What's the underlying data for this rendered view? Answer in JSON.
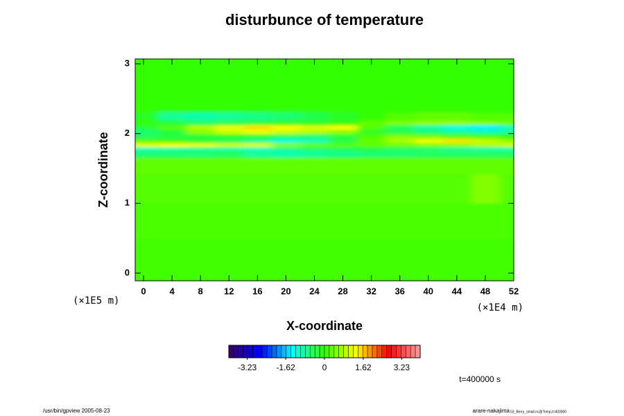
{
  "chart_data": {
    "type": "heatmap",
    "title": "disturbunce of temperature",
    "x_label": "X-coordinate",
    "y_label": "Z-coordinate",
    "x_unit": "(×1E4 m)",
    "y_unit": "(×1E5 m)",
    "time_label": "t=400000 s",
    "footer_left": "/usr/bin/gpview 2005-08-23",
    "footer_right": "arare-nakajima",
    "footer_right_small": "03_Berry_small.nc@Temp,t=400000",
    "xlim": [
      -1.17,
      52
    ],
    "ylim": [
      -0.11,
      3.07
    ],
    "xticks": [
      0,
      4,
      8,
      12,
      16,
      20,
      24,
      28,
      32,
      36,
      40,
      44,
      48,
      52
    ],
    "yticks": [
      0,
      1,
      2,
      3
    ],
    "x": [
      0,
      4,
      8,
      12,
      16,
      20,
      24,
      28,
      32,
      36,
      40,
      44,
      48,
      52
    ],
    "y": [
      0.25,
      0.75,
      1.25,
      1.6,
      1.72,
      1.78,
      1.84,
      1.9,
      1.96,
      2.03,
      2.09,
      2.16,
      2.22,
      2.4,
      2.8
    ],
    "values": [
      [
        0.1,
        0.1,
        0.1,
        0.1,
        0.1,
        0.1,
        0.1,
        0.1,
        0.1,
        0.1,
        0.1,
        0.1,
        0.1,
        0.1
      ],
      [
        0.15,
        0.15,
        0.15,
        0.15,
        0.15,
        0.15,
        0.15,
        0.15,
        0.15,
        0.15,
        0.15,
        0.15,
        0.15,
        0.15
      ],
      [
        0.2,
        0.2,
        0.2,
        0.2,
        0.2,
        0.2,
        0.2,
        0.2,
        0.2,
        0.2,
        0.2,
        0.2,
        0.5,
        0.2
      ],
      [
        0.3,
        0.3,
        0.3,
        0.3,
        0.3,
        0.3,
        0.3,
        0.3,
        0.3,
        0.3,
        0.3,
        0.3,
        0.3,
        0.3
      ],
      [
        -0.6,
        -0.6,
        -0.6,
        -0.5,
        -0.8,
        -0.9,
        -0.8,
        -0.7,
        -0.6,
        -0.6,
        -0.5,
        -0.5,
        -0.5,
        -0.5
      ],
      [
        -1.0,
        -0.9,
        -0.8,
        -0.9,
        -1.0,
        -0.8,
        -0.6,
        -0.5,
        -0.4,
        -0.5,
        -0.6,
        -0.8,
        -0.9,
        -0.9
      ],
      [
        1.2,
        1.3,
        1.2,
        1.0,
        1.1,
        0.5,
        0.3,
        0.2,
        0.3,
        0.4,
        0.5,
        0.6,
        0.8,
        1.0
      ],
      [
        0.2,
        0.1,
        -0.3,
        -0.5,
        -0.8,
        -1.2,
        -1.0,
        -0.4,
        0.3,
        0.8,
        1.3,
        1.5,
        1.0,
        0.6
      ],
      [
        -0.5,
        -0.4,
        -0.3,
        -0.2,
        -0.3,
        -0.5,
        -0.6,
        -0.3,
        0.2,
        0.5,
        0.4,
        0.2,
        0.1,
        0.0
      ],
      [
        -0.6,
        -0.3,
        0.6,
        1.0,
        1.2,
        1.0,
        0.8,
        0.6,
        -0.2,
        -0.4,
        -0.6,
        -0.8,
        -0.9,
        -0.8
      ],
      [
        -0.3,
        0.2,
        0.8,
        1.2,
        1.5,
        1.3,
        1.1,
        1.3,
        0.2,
        -0.5,
        -0.9,
        -1.2,
        -1.4,
        -1.0
      ],
      [
        0.0,
        -0.3,
        -0.5,
        -0.4,
        -0.3,
        -0.2,
        -0.2,
        -0.1,
        0.3,
        0.5,
        0.6,
        0.6,
        0.5,
        0.4
      ],
      [
        -0.2,
        -0.8,
        -0.9,
        -0.8,
        -0.7,
        -0.6,
        -0.4,
        -0.2,
        0.0,
        0.2,
        0.3,
        0.3,
        0.2,
        0.2
      ],
      [
        0.0,
        0.0,
        0.0,
        0.0,
        0.0,
        0.0,
        0.0,
        0.0,
        0.0,
        0.0,
        0.0,
        0.0,
        0.0,
        0.0
      ],
      [
        0.0,
        0.0,
        0.0,
        0.0,
        0.0,
        0.0,
        0.0,
        0.0,
        0.0,
        0.0,
        0.0,
        0.0,
        0.0,
        0.0
      ]
    ],
    "clim": [
      -4,
      4
    ],
    "colormap": [
      "#3a0066",
      "#0000ff",
      "#00ffff",
      "#33ff00",
      "#ffff00",
      "#ff0000",
      "#ffa0a0"
    ],
    "colorbar_ticks": [
      -3.23,
      -1.62,
      0,
      1.62,
      3.23
    ]
  }
}
